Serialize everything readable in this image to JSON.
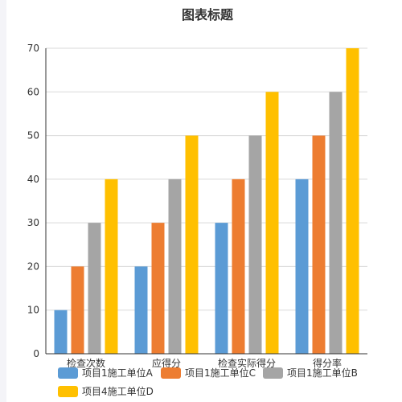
{
  "chart_data": {
    "type": "bar",
    "title": "图表标题",
    "categories": [
      "检查次数",
      "应得分",
      "检查实际得分",
      "得分率"
    ],
    "series": [
      {
        "name": "项目1施工单位A",
        "color": "#5b9bd5",
        "values": [
          10,
          20,
          30,
          40
        ]
      },
      {
        "name": "项目1施工单位C",
        "color": "#ed7d31",
        "values": [
          20,
          30,
          40,
          50
        ]
      },
      {
        "name": "项目1施工单位B",
        "color": "#a5a5a5",
        "values": [
          30,
          40,
          50,
          60
        ]
      },
      {
        "name": "项目4施工单位D",
        "color": "#ffc000",
        "values": [
          40,
          50,
          60,
          70
        ]
      }
    ],
    "yticks": [
      0,
      10,
      20,
      30,
      40,
      50,
      60,
      70
    ],
    "ylim": [
      0,
      70
    ],
    "xlabel": "",
    "ylabel": "",
    "grid": true,
    "legend_position": "bottom"
  }
}
